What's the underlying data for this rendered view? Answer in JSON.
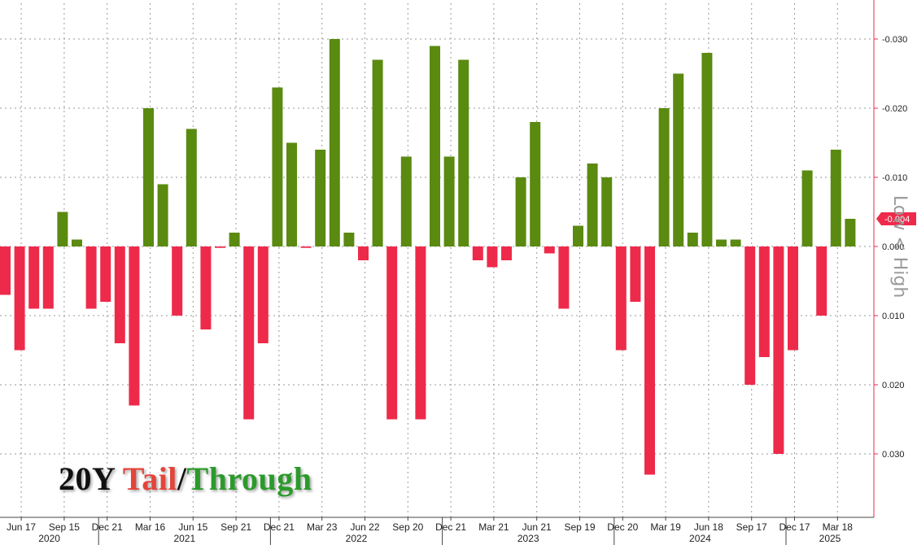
{
  "title": {
    "prefix": "20Y",
    "tail": "Tail",
    "slash": "/",
    "through": "Through",
    "colors": {
      "prefix": "#111111",
      "tail": "#e4443a",
      "slash": "#111111",
      "through": "#2b9a2b"
    }
  },
  "axis_side_label": "Low < High",
  "last_value_label": "-0.004",
  "colors": {
    "positive": "#5a8a10",
    "negative": "#ee2a4a",
    "label_bg": "#ee2a4a",
    "grid": "#999999",
    "right_axis": "#ee2a4a"
  },
  "chart_data": {
    "type": "bar",
    "y_axis_inverted": true,
    "ylim": [
      -0.037,
      0.037
    ],
    "y_ticks": [
      -0.03,
      -0.02,
      -0.01,
      0.0,
      0.01,
      0.02,
      0.03
    ],
    "y_tick_labels": [
      "-0.030",
      "-0.020",
      "-0.010",
      "0.000",
      "0.010",
      "0.020",
      "0.030"
    ],
    "grid": true,
    "x_tick_labels": [
      "Jun 17",
      "Sep 15",
      "Dec 21",
      "Mar 16",
      "Jun 15",
      "Sep 21",
      "Dec 21",
      "Mar 23",
      "Jun 22",
      "Sep 20",
      "Dec 21",
      "Mar 21",
      "Jun 21",
      "Sep 19",
      "Dec 20",
      "Mar 19",
      "Jun 18",
      "Sep 17",
      "Dec 17",
      "Mar 18"
    ],
    "x_tick_index": [
      1,
      4,
      7,
      10,
      13,
      16,
      19,
      22,
      25,
      28,
      31,
      34,
      37,
      40,
      43,
      46,
      49,
      52,
      55,
      58
    ],
    "year_labels": [
      "2020",
      "2021",
      "2022",
      "2023",
      "2024",
      "2025"
    ],
    "year_start_index": [
      0,
      7,
      19,
      31,
      43,
      55
    ],
    "values": [
      0.007,
      0.015,
      0.009,
      0.009,
      -0.005,
      -0.001,
      0.009,
      0.008,
      0.014,
      0.023,
      -0.02,
      -0.009,
      0.01,
      -0.017,
      0.012,
      0.0002,
      -0.002,
      0.025,
      0.014,
      -0.023,
      -0.015,
      0.0002,
      -0.014,
      -0.03,
      -0.002,
      0.002,
      -0.027,
      0.025,
      -0.013,
      0.025,
      -0.029,
      -0.013,
      -0.027,
      0.002,
      0.003,
      0.002,
      -0.01,
      -0.018,
      0.001,
      0.009,
      -0.003,
      -0.012,
      -0.01,
      0.015,
      0.008,
      0.033,
      -0.02,
      -0.025,
      -0.002,
      -0.028,
      -0.001,
      -0.001,
      0.02,
      0.016,
      0.03,
      0.015,
      -0.011,
      0.01,
      -0.014,
      -0.004
    ]
  }
}
